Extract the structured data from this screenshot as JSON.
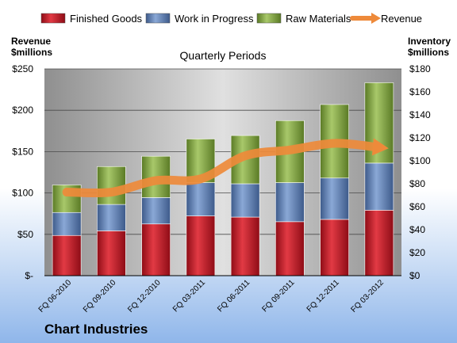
{
  "chart_data": {
    "type": "bar",
    "stacked": true,
    "title": "Quarterly Periods",
    "company": "Chart Industries",
    "y_left_label_1": "Revenue",
    "y_left_label_2": "$millions",
    "y_right_label_1": "Inventory",
    "y_right_label_2": "$millions",
    "categories": [
      "FQ 06-2010",
      "FQ 09-2010",
      "FQ 12-2010",
      "FQ 03-2011",
      "FQ 06-2011",
      "FQ 09-2011",
      "FQ 12-2011",
      "FQ 03-2012"
    ],
    "series": [
      {
        "name": "Finished Goods",
        "axis": "right",
        "color": "#c0111f",
        "values": [
          35,
          39,
          45,
          52,
          51,
          47,
          49,
          57
        ]
      },
      {
        "name": "Work in Progress",
        "axis": "right",
        "color": "#5b7fb7",
        "values": [
          20,
          23,
          23,
          29,
          29,
          34,
          36,
          41
        ]
      },
      {
        "name": "Raw Materials",
        "axis": "right",
        "color": "#7ea33b",
        "values": [
          24,
          33,
          36,
          38,
          42,
          54,
          64,
          70
        ]
      },
      {
        "name": "Revenue",
        "axis": "left",
        "type": "line",
        "color": "#ee8a3a",
        "values": [
          101,
          101,
          115,
          117,
          145,
          152,
          160,
          155
        ]
      }
    ],
    "y_left": {
      "min": 0,
      "max": 250,
      "step": 50,
      "tick_labels": [
        "$-",
        "$50",
        "$100",
        "$150",
        "$200",
        "$250"
      ]
    },
    "y_right": {
      "min": 0,
      "max": 180,
      "step": 20,
      "tick_labels": [
        "$0",
        "$20",
        "$40",
        "$60",
        "$80",
        "$100",
        "$120",
        "$140",
        "$160",
        "$180"
      ]
    },
    "grid": true,
    "legend": "top"
  }
}
